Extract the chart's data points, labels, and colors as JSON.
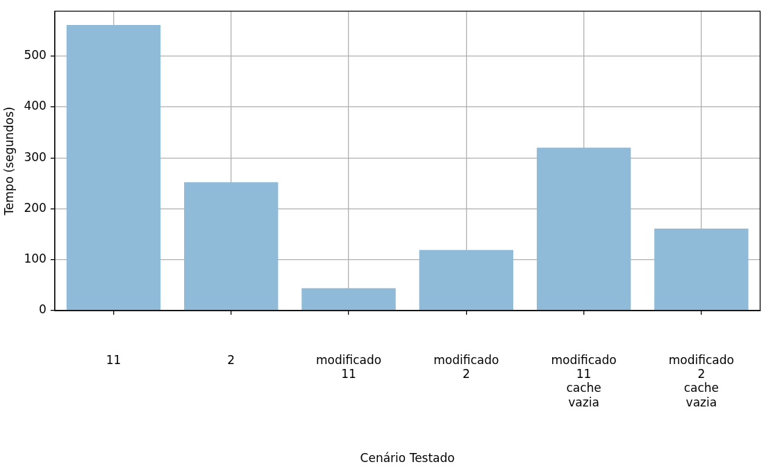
{
  "chart_data": {
    "type": "bar",
    "xlabel": "Cenário Testado",
    "ylabel": "Tempo (segundos)",
    "categories": [
      "11",
      "2",
      "modificado\n11",
      "modificado\n2",
      "modificado\n11\ncache\nvazia",
      "modificado\n2\ncache\nvazia"
    ],
    "values": [
      561,
      252,
      44,
      119,
      320,
      161
    ],
    "color": "#8fbbd9",
    "ylim": [
      0,
      588
    ],
    "yticks": [
      0,
      100,
      200,
      300,
      400,
      500
    ],
    "grid": true
  }
}
